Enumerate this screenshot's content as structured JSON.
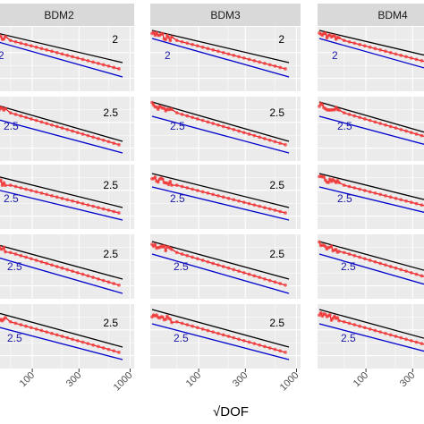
{
  "chart_data": {
    "type": "line",
    "facet_columns": [
      "BDM2",
      "BDM3",
      "BDM4"
    ],
    "facet_rows": 5,
    "xlabel": "DOF",
    "x_scale": "log",
    "x_ticks": [
      100,
      300,
      1000
    ],
    "x_tick_labels": [
      "100",
      "300",
      "1000"
    ],
    "y_scale": "log",
    "grid": true,
    "colors": {
      "panel_bg": "#ebebeb",
      "grid_major": "#ffffff",
      "strip_bg": "#d9d9d9",
      "error_line": "#e8141b",
      "error_point": "#f23b3b",
      "upper_ref": "#000000",
      "lower_ref": "#0000cc",
      "upper_label": "#000000",
      "lower_label": "#1a1aa6"
    },
    "rows": [
      {
        "upper_label": "2",
        "lower_label": "2"
      },
      {
        "upper_label": "2.5",
        "lower_label": "2.5"
      },
      {
        "upper_label": "2.5",
        "lower_label": "2.5"
      },
      {
        "upper_label": "2.5",
        "lower_label": "2.5"
      },
      {
        "upper_label": "2.5",
        "lower_label": "2.5"
      }
    ],
    "series": [
      {
        "name": "",
        "kind": "error",
        "note_is_visual": true
      }
    ]
  }
}
